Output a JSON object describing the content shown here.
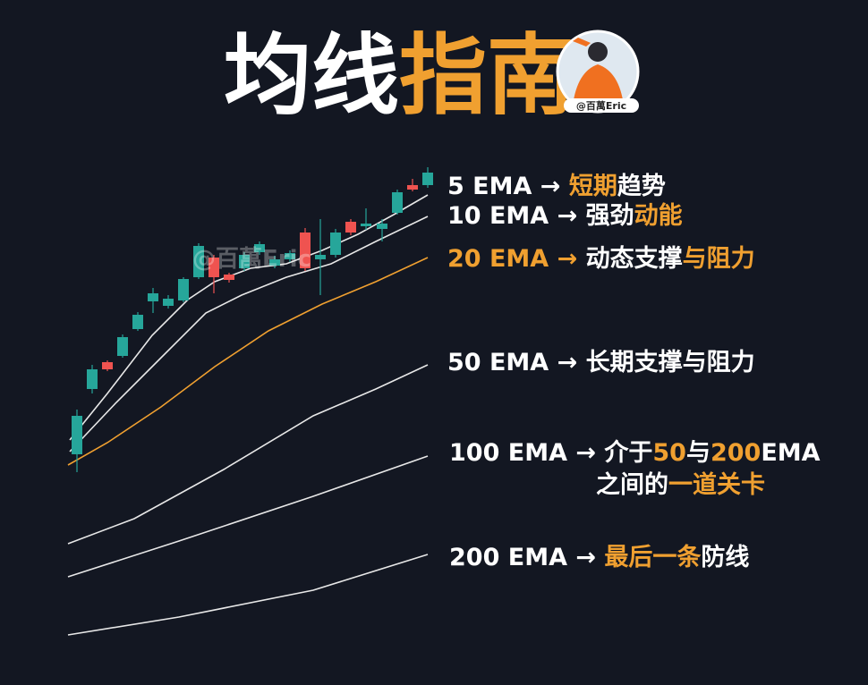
{
  "title": {
    "plain": "均线",
    "accent": "指南"
  },
  "avatar_label": "@百萬Eric",
  "watermark": "@百萬Eric",
  "rows": [
    {
      "lines": [
        [
          {
            "text": "5 EMA → "
          },
          {
            "text": "短期",
            "accent": true
          },
          {
            "text": "趋势"
          }
        ]
      ]
    },
    {
      "lines": [
        [
          {
            "text": "10 EMA → "
          },
          {
            "text": "强劲"
          },
          {
            "text": "动能",
            "accent": true
          }
        ]
      ]
    },
    {
      "lines": [
        [
          {
            "text": "20 EMA → ",
            "accent": true
          },
          {
            "text": "动态支撑"
          },
          {
            "text": "与阻力",
            "accent": true
          }
        ]
      ]
    },
    {
      "lines": [
        [
          {
            "text": "50 EMA → "
          },
          {
            "text": "长期支撑与阻力"
          }
        ]
      ]
    },
    {
      "lines": [
        [
          {
            "text": "100 EMA → "
          },
          {
            "text": "介于"
          },
          {
            "text": "50",
            "accent": true
          },
          {
            "text": "与"
          },
          {
            "text": "200",
            "accent": true
          },
          {
            "text": "EMA"
          }
        ],
        [
          {
            "text": "之间的"
          },
          {
            "text": "一道关卡",
            "accent": true
          }
        ]
      ]
    },
    {
      "lines": [
        [
          {
            "text": "200 EMA → "
          },
          {
            "text": "最后一条",
            "accent": true
          },
          {
            "text": "防线"
          }
        ]
      ]
    }
  ]
}
